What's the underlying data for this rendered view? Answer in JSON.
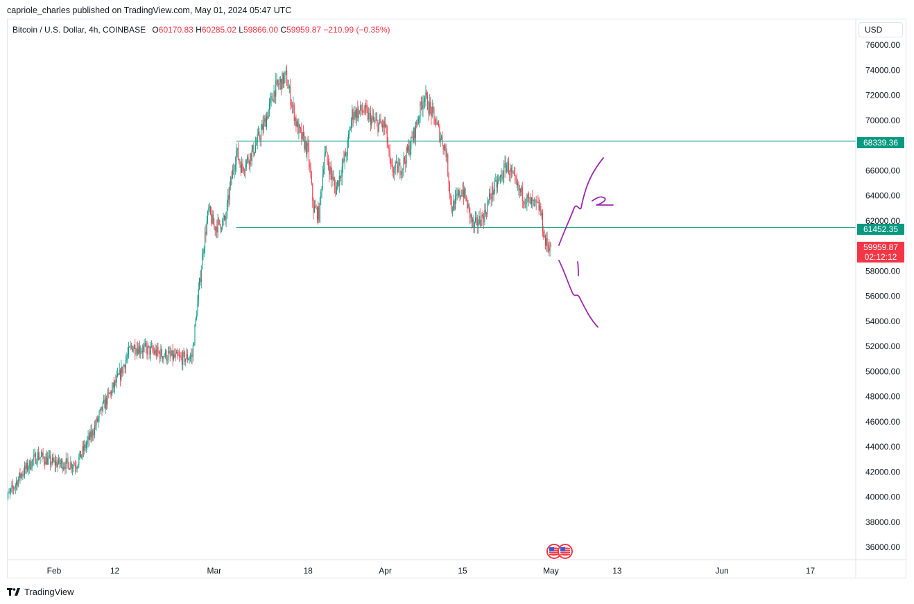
{
  "header": {
    "published_line": "capriole_charles published on TradingView.com, May 01, 2024 05:47 UTC"
  },
  "legend": {
    "symbol": "Bitcoin / U.S. Dollar, 4h, COINBASE",
    "open_label": "O",
    "open": "60170.83",
    "high_label": "H",
    "high": "60285.02",
    "low_label": "L",
    "low": "59866.00",
    "close_label": "C",
    "close": "59959.87",
    "change": "−210.99 (−0.35%)"
  },
  "price_scale": {
    "currency": "USD",
    "upper_level": "68339.36",
    "lower_level": "61452.35",
    "last_price": "59959.87",
    "countdown": "02:12:12"
  },
  "footer": {
    "brand": "TradingView"
  },
  "colors": {
    "up": "#089981",
    "down": "#f23645",
    "level": "#089981",
    "drawing": "#9c27b0"
  },
  "chart_data": {
    "type": "candlestick",
    "symbol": "Bitcoin / U.S. Dollar",
    "interval": "4h",
    "exchange": "COINBASE",
    "ylim": [
      35000,
      77000
    ],
    "y_ticks": [
      36000,
      38000,
      40000,
      42000,
      44000,
      46000,
      48000,
      50000,
      52000,
      54000,
      56000,
      58000,
      60000,
      62000,
      64000,
      66000,
      68000,
      70000,
      72000,
      74000,
      76000
    ],
    "y_tick_labels": [
      "36000.00",
      "38000.00",
      "40000.00",
      "42000.00",
      "44000.00",
      "46000.00",
      "48000.00",
      "50000.00",
      "52000.00",
      "54000.00",
      "56000.00",
      "58000.00",
      "60000.00",
      "62000.00",
      "64000.00",
      "66000.00",
      "68000.00",
      "70000.00",
      "72000.00",
      "74000.00",
      "76000.00"
    ],
    "x_ticks": [
      {
        "label": "Feb",
        "date": "2024-02-01"
      },
      {
        "label": "12",
        "date": "2024-02-12"
      },
      {
        "label": "Mar",
        "date": "2024-03-01"
      },
      {
        "label": "18",
        "date": "2024-03-18"
      },
      {
        "label": "Apr",
        "date": "2024-04-01"
      },
      {
        "label": "15",
        "date": "2024-04-15"
      },
      {
        "label": "May",
        "date": "2024-05-01"
      },
      {
        "label": "13",
        "date": "2024-05-13"
      },
      {
        "label": "Jun",
        "date": "2024-06-01"
      },
      {
        "label": "17",
        "date": "2024-06-17"
      }
    ],
    "price_path": [
      [
        "2024-01-23",
        39500
      ],
      [
        "2024-01-26",
        41800
      ],
      [
        "2024-01-29",
        43300
      ],
      [
        "2024-02-01",
        42700
      ],
      [
        "2024-02-05",
        42600
      ],
      [
        "2024-02-08",
        45200
      ],
      [
        "2024-02-10",
        47300
      ],
      [
        "2024-02-13",
        49800
      ],
      [
        "2024-02-15",
        52000
      ],
      [
        "2024-02-18",
        51700
      ],
      [
        "2024-02-21",
        51300
      ],
      [
        "2024-02-24",
        51000
      ],
      [
        "2024-02-26",
        51200
      ],
      [
        "2024-02-27",
        55500
      ],
      [
        "2024-02-28",
        59800
      ],
      [
        "2024-02-29",
        62800
      ],
      [
        "2024-03-01",
        61500
      ],
      [
        "2024-03-03",
        62000
      ],
      [
        "2024-03-04",
        65000
      ],
      [
        "2024-03-05",
        67500
      ],
      [
        "2024-03-06",
        66200
      ],
      [
        "2024-03-08",
        67500
      ],
      [
        "2024-03-10",
        69600
      ],
      [
        "2024-03-12",
        72500
      ],
      [
        "2024-03-14",
        73500
      ],
      [
        "2024-03-16",
        69500
      ],
      [
        "2024-03-18",
        67500
      ],
      [
        "2024-03-19",
        63000
      ],
      [
        "2024-03-20",
        62500
      ],
      [
        "2024-03-21",
        67500
      ],
      [
        "2024-03-23",
        64500
      ],
      [
        "2024-03-25",
        67500
      ],
      [
        "2024-03-26",
        70500
      ],
      [
        "2024-03-28",
        70800
      ],
      [
        "2024-03-30",
        69800
      ],
      [
        "2024-04-01",
        69500
      ],
      [
        "2024-04-02",
        66000
      ],
      [
        "2024-04-04",
        66300
      ],
      [
        "2024-04-06",
        68600
      ],
      [
        "2024-04-08",
        72000
      ],
      [
        "2024-04-10",
        70000
      ],
      [
        "2024-04-12",
        67500
      ],
      [
        "2024-04-13",
        63000
      ],
      [
        "2024-04-15",
        64500
      ],
      [
        "2024-04-17",
        61500
      ],
      [
        "2024-04-19",
        62500
      ],
      [
        "2024-04-20",
        64000
      ],
      [
        "2024-04-22",
        65500
      ],
      [
        "2024-04-23",
        66500
      ],
      [
        "2024-04-25",
        64500
      ],
      [
        "2024-04-27",
        63500
      ],
      [
        "2024-04-29",
        63000
      ],
      [
        "2024-04-30",
        60200
      ],
      [
        "2024-05-01",
        59960
      ]
    ],
    "horizontal_levels": [
      {
        "value": 68339.36,
        "start": "2024-03-05"
      },
      {
        "value": 61452.35,
        "start": "2024-03-05"
      }
    ],
    "last_price": 59959.87,
    "annotations": [
      {
        "label": "1",
        "meaning": "hand-drawn downward path"
      },
      {
        "label": "2",
        "meaning": "hand-drawn upward path"
      }
    ]
  }
}
